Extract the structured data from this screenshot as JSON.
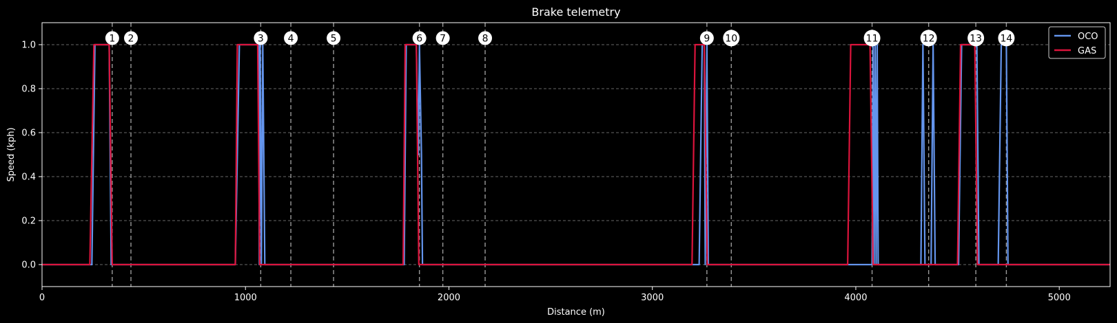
{
  "chart_data": {
    "type": "line",
    "title": "Brake telemetry",
    "xlabel": "Distance (m)",
    "ylabel": "Speed (kph)",
    "xlim": [
      0,
      5250
    ],
    "ylim": [
      -0.1,
      1.1
    ],
    "x_ticks": [
      0,
      1000,
      2000,
      3000,
      4000,
      5000
    ],
    "y_ticks": [
      0.0,
      0.2,
      0.4,
      0.6,
      0.8,
      1.0
    ],
    "x_tick_labels": [
      "0",
      "1000",
      "2000",
      "3000",
      "4000",
      "5000"
    ],
    "y_tick_labels": [
      "0.0",
      "0.2",
      "0.4",
      "0.6",
      "0.8",
      "1.0"
    ],
    "grid": true,
    "legend_position": "top-right",
    "corners": [
      {
        "label": "1",
        "x": 345
      },
      {
        "label": "2",
        "x": 437
      },
      {
        "label": "3",
        "x": 1075
      },
      {
        "label": "4",
        "x": 1223
      },
      {
        "label": "5",
        "x": 1433
      },
      {
        "label": "6",
        "x": 1855
      },
      {
        "label": "7",
        "x": 1970
      },
      {
        "label": "8",
        "x": 2178
      },
      {
        "label": "9",
        "x": 3268
      },
      {
        "label": "10",
        "x": 3388
      },
      {
        "label": "11",
        "x": 4080
      },
      {
        "label": "12",
        "x": 4358
      },
      {
        "label": "13",
        "x": 4590
      },
      {
        "label": "14",
        "x": 4740
      }
    ],
    "series": [
      {
        "name": "OCO",
        "color": "#6495ED",
        "x": [
          0,
          245,
          260,
          330,
          340,
          950,
          970,
          985,
          1055,
          1065,
          1068,
          1072,
          1078,
          1085,
          1095,
          1780,
          1790,
          1840,
          1850,
          1855,
          1865,
          1870,
          3230,
          3245,
          3255,
          3260,
          3268,
          3275,
          4080,
          4085,
          4090,
          4095,
          4100,
          4105,
          4110,
          4118,
          4320,
          4330,
          4340,
          4370,
          4380,
          4390,
          4505,
          4520,
          4595,
          4605,
          4700,
          4715,
          4740,
          4748,
          5250
        ],
        "y": [
          0,
          0,
          1,
          1,
          0,
          0,
          1,
          1,
          1,
          1,
          0,
          1,
          0,
          1,
          0,
          0,
          1,
          1,
          0.5,
          1,
          0.5,
          0,
          0,
          1,
          1,
          0,
          1,
          0,
          0,
          1,
          0,
          1,
          0,
          1,
          0,
          0,
          0,
          1,
          0,
          0,
          1,
          0,
          0,
          1,
          1,
          0,
          0,
          1,
          1,
          0,
          0
        ]
      },
      {
        "name": "GAS",
        "color": "#DC143C",
        "x": [
          0,
          235,
          255,
          330,
          345,
          950,
          960,
          1060,
          1070,
          1775,
          1785,
          1840,
          1852,
          3195,
          3210,
          3255,
          3270,
          3960,
          3975,
          4070,
          4085,
          4500,
          4515,
          4585,
          4598,
          5250
        ],
        "y": [
          0,
          0,
          1,
          1,
          0,
          0,
          1,
          1,
          0,
          0,
          1,
          1,
          0,
          0,
          1,
          1,
          0,
          0,
          1,
          1,
          0,
          0,
          1,
          1,
          0,
          0
        ]
      }
    ]
  }
}
